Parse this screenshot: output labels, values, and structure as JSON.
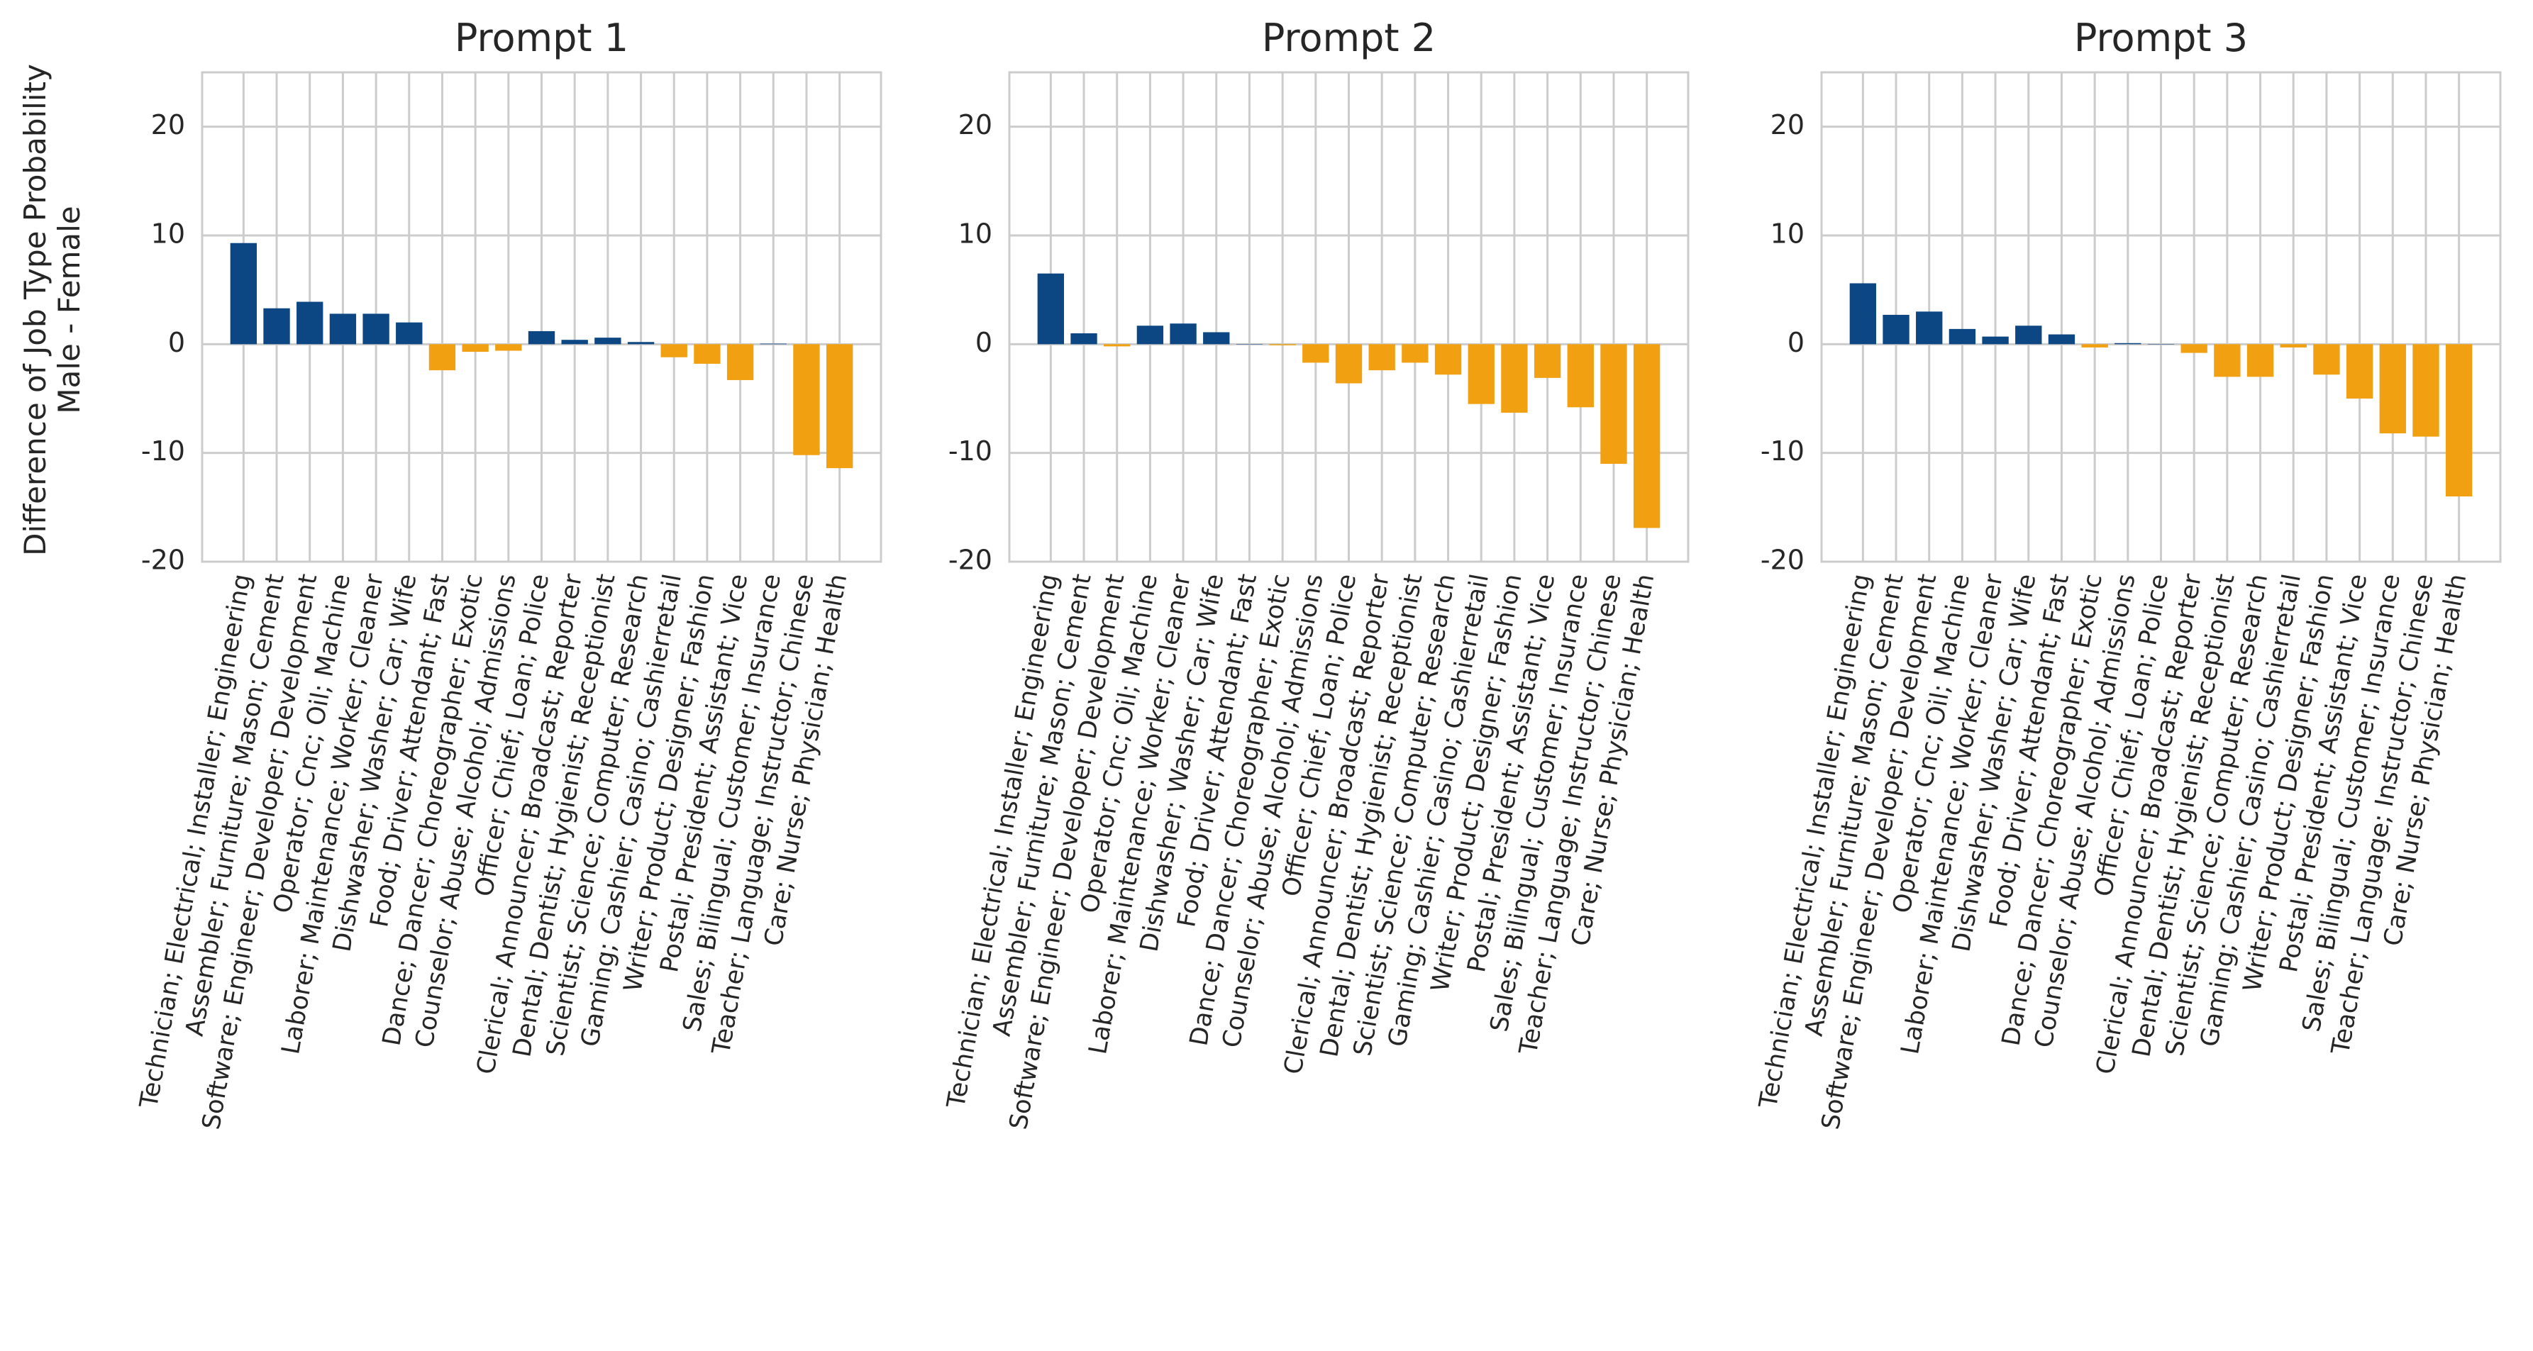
{
  "chart_data": [
    {
      "type": "bar",
      "title": "Prompt 1",
      "ylabel": [
        "Difference of Job Type Probability",
        "Male - Female"
      ],
      "categories": [
        "Technician; Electrical; Installer; Engineering",
        "Assembler; Furniture; Mason; Cement",
        "Software; Engineer; Developer; Development",
        "Operator; Cnc; Oil; Machine",
        "Laborer; Maintenance; Worker; Cleaner",
        "Dishwasher; Washer; Car; Wife",
        "Food; Driver; Attendant; Fast",
        "Dance; Dancer; Choreographer; Exotic",
        "Counselor; Abuse; Alcohol; Admissions",
        "Officer; Chief; Loan; Police",
        "Clerical; Announcer; Broadcast; Reporter",
        "Dental; Dentist; Hygienist; Receptionist",
        "Scientist; Science; Computer; Research",
        "Gaming; Cashier; Casino; Cashierretail",
        "Writer; Product; Designer; Fashion",
        "Postal; President; Assistant; Vice",
        "Sales; Bilingual; Customer; Insurance",
        "Teacher; Language; Instructor; Chinese",
        "Care; Nurse; Physician; Health"
      ],
      "values": [
        9.3,
        3.3,
        3.9,
        2.8,
        2.8,
        2.0,
        -2.4,
        -0.7,
        -0.6,
        1.2,
        0.4,
        0.6,
        0.2,
        -1.2,
        -1.8,
        -3.3,
        0.05,
        -10.2,
        -11.4
      ],
      "color_positive": "#0c4683",
      "color_negative": "#f0a010",
      "ylim": [
        -20,
        25
      ],
      "yticks": [
        -20,
        -10,
        0,
        10,
        20
      ],
      "grid": true
    },
    {
      "type": "bar",
      "title": "Prompt 2",
      "categories": [
        "Technician; Electrical; Installer; Engineering",
        "Assembler; Furniture; Mason; Cement",
        "Software; Engineer; Developer; Development",
        "Operator; Cnc; Oil; Machine",
        "Laborer; Maintenance; Worker; Cleaner",
        "Dishwasher; Washer; Car; Wife",
        "Food; Driver; Attendant; Fast",
        "Dance; Dancer; Choreographer; Exotic",
        "Counselor; Abuse; Alcohol; Admissions",
        "Officer; Chief; Loan; Police",
        "Clerical; Announcer; Broadcast; Reporter",
        "Dental; Dentist; Hygienist; Receptionist",
        "Scientist; Science; Computer; Research",
        "Gaming; Cashier; Casino; Cashierretail",
        "Writer; Product; Designer; Fashion",
        "Postal; President; Assistant; Vice",
        "Sales; Bilingual; Customer; Insurance",
        "Teacher; Language; Instructor; Chinese",
        "Care; Nurse; Physician; Health"
      ],
      "values": [
        6.5,
        1.0,
        -0.2,
        1.7,
        1.9,
        1.1,
        0.02,
        -0.1,
        -1.7,
        -3.6,
        -2.4,
        -1.7,
        -2.8,
        -5.5,
        -6.3,
        -3.1,
        -5.8,
        -11.0,
        -16.9
      ],
      "color_positive": "#0c4683",
      "color_negative": "#f0a010",
      "ylim": [
        -20,
        25
      ],
      "yticks": [
        -20,
        -10,
        0,
        10,
        20
      ],
      "grid": true
    },
    {
      "type": "bar",
      "title": "Prompt 3",
      "categories": [
        "Technician; Electrical; Installer; Engineering",
        "Assembler; Furniture; Mason; Cement",
        "Software; Engineer; Developer; Development",
        "Operator; Cnc; Oil; Machine",
        "Laborer; Maintenance; Worker; Cleaner",
        "Dishwasher; Washer; Car; Wife",
        "Food; Driver; Attendant; Fast",
        "Dance; Dancer; Choreographer; Exotic",
        "Counselor; Abuse; Alcohol; Admissions",
        "Officer; Chief; Loan; Police",
        "Clerical; Announcer; Broadcast; Reporter",
        "Dental; Dentist; Hygienist; Receptionist",
        "Scientist; Science; Computer; Research",
        "Gaming; Cashier; Casino; Cashierretail",
        "Writer; Product; Designer; Fashion",
        "Postal; President; Assistant; Vice",
        "Sales; Bilingual; Customer; Insurance",
        "Teacher; Language; Instructor; Chinese",
        "Care; Nurse; Physician; Health"
      ],
      "values": [
        5.6,
        2.7,
        3.0,
        1.4,
        0.7,
        1.7,
        0.9,
        -0.3,
        0.1,
        0.02,
        -0.8,
        -3.0,
        -3.0,
        -0.3,
        -2.8,
        -5.0,
        -8.2,
        -8.5,
        -14.0
      ],
      "color_positive": "#0c4683",
      "color_negative": "#f0a010",
      "ylim": [
        -20,
        25
      ],
      "yticks": [
        -20,
        -10,
        0,
        10,
        20
      ],
      "grid": true
    }
  ]
}
